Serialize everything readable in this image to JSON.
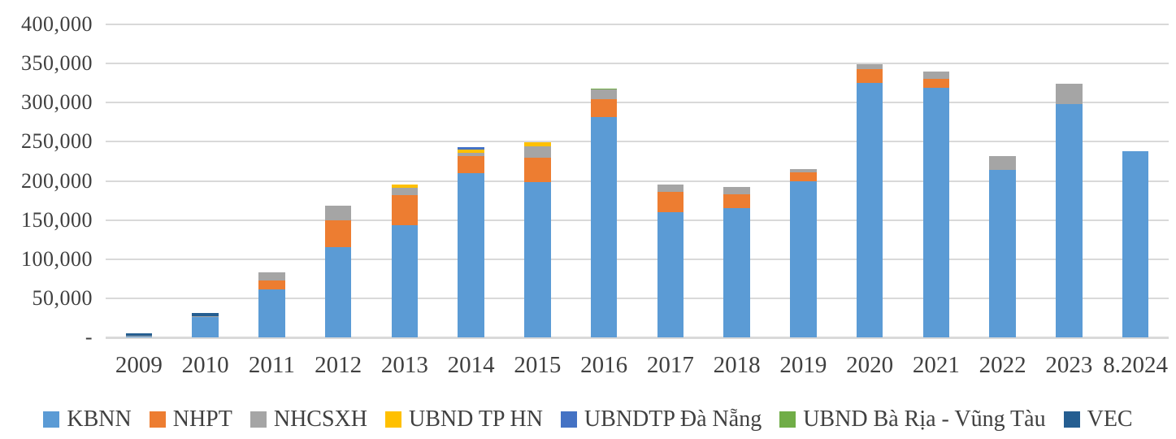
{
  "chart_data": {
    "type": "bar",
    "stacked": true,
    "title": "",
    "xlabel": "",
    "ylabel": "",
    "ylim": [
      0,
      400000
    ],
    "ytick_step": 50000,
    "grid": true,
    "gridline_color": "#d9d9d9",
    "axis_text_color": "#404040",
    "legend_position": "bottom",
    "zero_tick_label": "-",
    "yticks": [
      {
        "value": 400000,
        "label": "400,000"
      },
      {
        "value": 350000,
        "label": "350,000"
      },
      {
        "value": 300000,
        "label": "300,000"
      },
      {
        "value": 250000,
        "label": "250,000"
      },
      {
        "value": 200000,
        "label": "200,000"
      },
      {
        "value": 150000,
        "label": "150,000"
      },
      {
        "value": 100000,
        "label": "100,000"
      },
      {
        "value": 50000,
        "label": "50,000"
      },
      {
        "value": 0,
        "label": "-"
      }
    ],
    "categories": [
      "2009",
      "2010",
      "2011",
      "2012",
      "2013",
      "2014",
      "2015",
      "2016",
      "2017",
      "2018",
      "2019",
      "2020",
      "2021",
      "2022",
      "2023",
      "8.2024"
    ],
    "series": [
      {
        "name": "KBNN",
        "color": "#5B9BD5",
        "values": [
          1500,
          26000,
          61000,
          115000,
          143000,
          210000,
          198000,
          282000,
          160000,
          165000,
          199000,
          325000,
          319000,
          214000,
          298000,
          238000
        ]
      },
      {
        "name": "NHPT",
        "color": "#ED7D31",
        "values": [
          0,
          0,
          11500,
          35000,
          39000,
          22000,
          32000,
          22000,
          26000,
          18000,
          12000,
          18000,
          11000,
          0,
          0,
          0
        ]
      },
      {
        "name": "NHCSXH",
        "color": "#A5A5A5",
        "values": [
          500,
          1000,
          10500,
          18000,
          9500,
          4000,
          14000,
          13000,
          9500,
          9000,
          4500,
          6000,
          10000,
          18000,
          26000,
          0
        ]
      },
      {
        "name": "UBND TP HN",
        "color": "#FFC000",
        "values": [
          0,
          0,
          0,
          0,
          3500,
          4000,
          5000,
          0,
          0,
          0,
          0,
          0,
          0,
          0,
          0,
          0
        ]
      },
      {
        "name": "UBNDTP Đà Nẵng",
        "color": "#4472C4",
        "values": [
          0,
          0,
          0,
          0,
          0,
          3500,
          0,
          0,
          0,
          0,
          0,
          0,
          0,
          0,
          0,
          0
        ]
      },
      {
        "name": "UBND Bà Rịa - Vũng Tàu",
        "color": "#70AD47",
        "values": [
          0,
          0,
          0,
          0,
          0,
          0,
          0,
          1300,
          0,
          0,
          0,
          0,
          0,
          0,
          0,
          0
        ]
      },
      {
        "name": "VEC",
        "color": "#255E91",
        "values": [
          3000,
          4000,
          0,
          0,
          0,
          0,
          0,
          0,
          0,
          0,
          0,
          0,
          0,
          0,
          0,
          0
        ]
      }
    ]
  }
}
